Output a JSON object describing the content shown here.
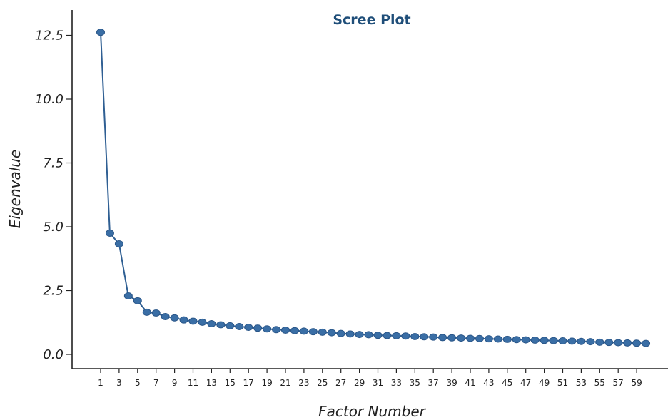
{
  "chart_data": {
    "type": "line",
    "title": "Scree Plot",
    "xlabel": "Factor Number",
    "ylabel": "Eigenvalue",
    "xlim": [
      1,
      60
    ],
    "ylim": [
      0,
      12.5
    ],
    "yticks": [
      0.0,
      2.5,
      5.0,
      7.5,
      10.0,
      12.5
    ],
    "ytick_labels": [
      "0.0",
      "2.5",
      "5.0",
      "7.5",
      "10.0",
      "12.5"
    ],
    "xticks": [
      1,
      3,
      5,
      7,
      9,
      11,
      13,
      15,
      17,
      19,
      21,
      23,
      25,
      27,
      29,
      31,
      33,
      35,
      37,
      39,
      41,
      43,
      45,
      47,
      49,
      51,
      53,
      55,
      57,
      59
    ],
    "grid": false,
    "line_color": "#2f5f93",
    "marker_color": "#3a6ea5",
    "title_color": "#1f4e79",
    "x": [
      1,
      2,
      3,
      4,
      5,
      6,
      7,
      8,
      9,
      10,
      11,
      12,
      13,
      14,
      15,
      16,
      17,
      18,
      19,
      20,
      21,
      22,
      23,
      24,
      25,
      26,
      27,
      28,
      29,
      30,
      31,
      32,
      33,
      34,
      35,
      36,
      37,
      38,
      39,
      40,
      41,
      42,
      43,
      44,
      45,
      46,
      47,
      48,
      49,
      50,
      51,
      52,
      53,
      54,
      55,
      56,
      57,
      58,
      59,
      60
    ],
    "y": [
      12.62,
      4.75,
      4.33,
      2.29,
      2.1,
      1.65,
      1.62,
      1.48,
      1.43,
      1.35,
      1.3,
      1.26,
      1.2,
      1.16,
      1.12,
      1.09,
      1.06,
      1.03,
      1.0,
      0.97,
      0.95,
      0.93,
      0.91,
      0.89,
      0.87,
      0.85,
      0.82,
      0.8,
      0.78,
      0.77,
      0.75,
      0.74,
      0.73,
      0.72,
      0.7,
      0.69,
      0.68,
      0.66,
      0.65,
      0.64,
      0.63,
      0.62,
      0.61,
      0.6,
      0.59,
      0.58,
      0.57,
      0.56,
      0.55,
      0.54,
      0.53,
      0.52,
      0.51,
      0.5,
      0.48,
      0.47,
      0.46,
      0.45,
      0.44,
      0.43
    ]
  }
}
